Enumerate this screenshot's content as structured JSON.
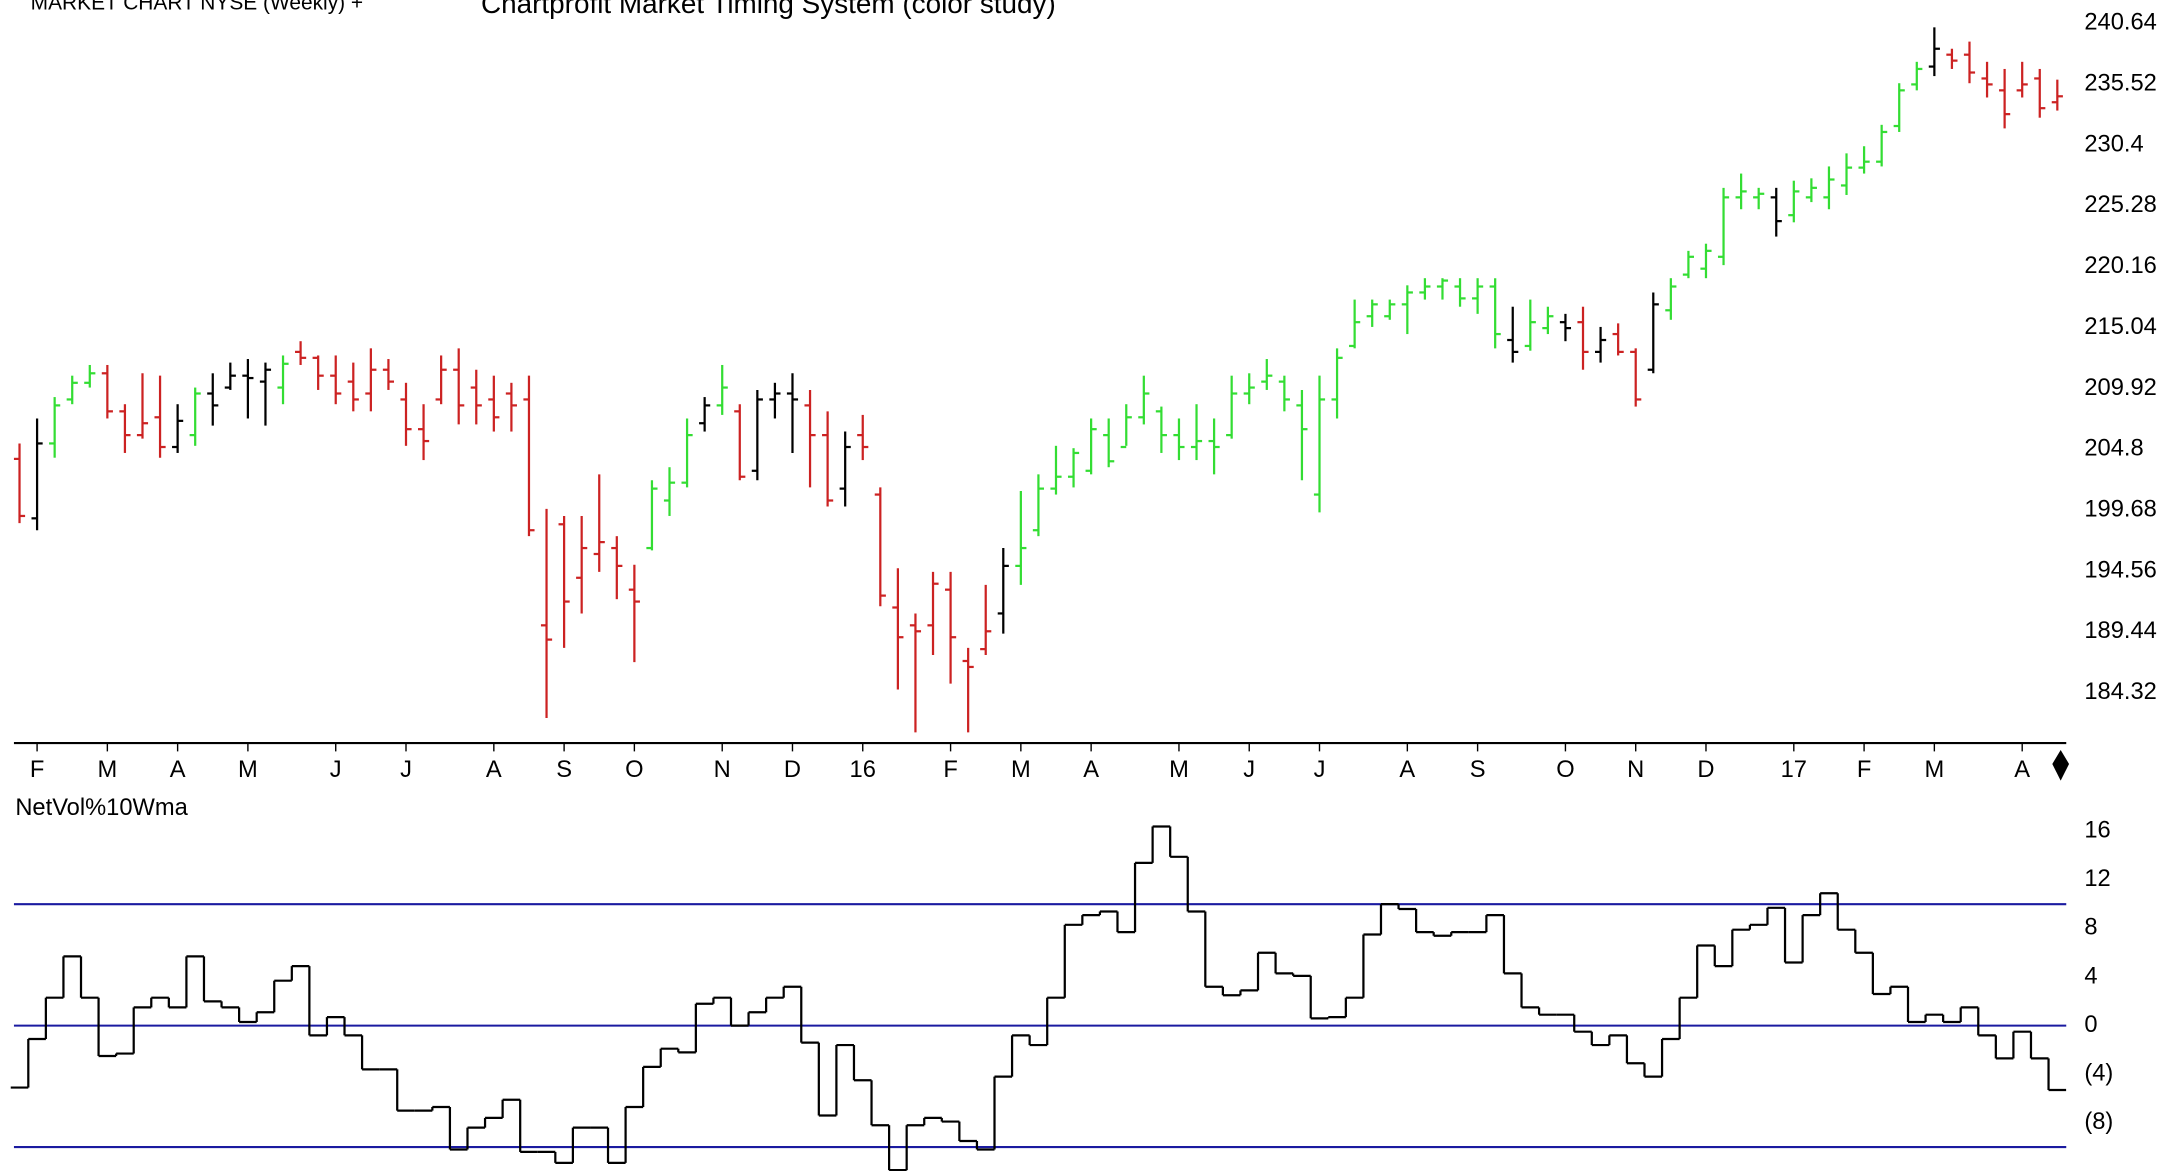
{
  "chart_data": [
    {
      "type": "ohlc",
      "title": "MARKET CHART NYSE (Weekly) +",
      "subtitle": "Chartprofit Market Timing System (color study)",
      "categories": [
        null,
        "F",
        null,
        null,
        null,
        "M",
        null,
        null,
        null,
        "A",
        null,
        null,
        null,
        "M",
        null,
        null,
        null,
        null,
        "J",
        null,
        null,
        null,
        "J",
        null,
        null,
        null,
        null,
        "A",
        null,
        null,
        null,
        "S",
        null,
        null,
        null,
        "O",
        null,
        null,
        null,
        null,
        "N",
        null,
        null,
        null,
        "D",
        null,
        null,
        null,
        "16",
        null,
        null,
        null,
        null,
        "F",
        null,
        null,
        null,
        "M",
        null,
        null,
        null,
        "A",
        null,
        null,
        null,
        null,
        "M",
        null,
        null,
        null,
        "J",
        null,
        null,
        null,
        "J",
        null,
        null,
        null,
        null,
        "A",
        null,
        null,
        null,
        "S",
        null,
        null,
        null,
        null,
        "O",
        null,
        null,
        null,
        "N",
        null,
        null,
        null,
        "D",
        null,
        null,
        null,
        null,
        "17",
        null,
        null,
        null,
        "F",
        null,
        null,
        null,
        "M",
        null,
        null,
        null,
        null,
        "A",
        null,
        null
      ],
      "open": [
        204.0,
        199.0,
        205.3,
        209.0,
        210.4,
        211.2,
        208.0,
        206.0,
        207.5,
        205.0,
        206.0,
        209.5,
        210.0,
        211.0,
        210.5,
        210.0,
        213.0,
        212.5,
        211.0,
        210.5,
        209.5,
        211.5,
        209.0,
        206.5,
        209.0,
        211.5,
        210.0,
        209.0,
        209.5,
        209.0,
        190.0,
        198.5,
        194.0,
        196.0,
        196.5,
        193.0,
        196.5,
        200.5,
        202.0,
        207.0,
        208.5,
        208.0,
        203.0,
        209.0,
        209.5,
        208.5,
        206.0,
        201.5,
        206.0,
        201.0,
        191.5,
        190.0,
        190.0,
        193.0,
        187.0,
        188.0,
        191.0,
        195.0,
        198.0,
        201.5,
        202.5,
        203.0,
        206.0,
        205.0,
        207.5,
        208.0,
        206.0,
        205.0,
        205.5,
        206.0,
        209.5,
        210.5,
        210.5,
        208.5,
        201.0,
        209.0,
        213.5,
        216.0,
        216.0,
        217.0,
        218.0,
        218.5,
        218.5,
        217.5,
        218.5,
        214.0,
        213.5,
        215.0,
        215.5,
        215.5,
        213.0,
        214.5,
        213.0,
        211.5,
        216.5,
        219.5,
        220.0,
        221.0,
        226.0,
        226.0,
        226.0,
        224.5,
        226.0,
        226.0,
        227.0,
        228.5,
        229.0,
        232.0,
        235.5,
        237.0,
        238.0,
        238.0,
        236.0,
        235.0,
        235.0,
        236.0,
        234.0
      ],
      "high": [
        205.3,
        207.4,
        209.2,
        211.0,
        211.9,
        211.9,
        208.6,
        211.2,
        211.0,
        208.6,
        210.0,
        211.2,
        212.1,
        212.4,
        212.1,
        212.7,
        213.9,
        212.7,
        212.7,
        212.1,
        213.3,
        212.4,
        210.4,
        208.6,
        212.7,
        213.3,
        211.5,
        211.0,
        210.4,
        211.0,
        199.8,
        199.2,
        199.2,
        202.7,
        197.5,
        195.1,
        202.2,
        203.3,
        207.4,
        209.2,
        211.9,
        208.6,
        209.8,
        210.4,
        211.2,
        209.8,
        208.0,
        206.3,
        207.7,
        201.6,
        194.8,
        191.0,
        194.5,
        194.5,
        188.1,
        193.4,
        196.5,
        201.3,
        202.7,
        205.1,
        204.9,
        207.4,
        207.4,
        208.6,
        211.0,
        208.4,
        207.4,
        208.6,
        207.4,
        211.0,
        211.2,
        212.4,
        211.0,
        209.8,
        211.0,
        213.3,
        217.4,
        217.4,
        217.4,
        218.6,
        219.2,
        219.2,
        219.2,
        219.2,
        219.2,
        216.8,
        217.4,
        216.8,
        216.2,
        216.8,
        215.1,
        215.4,
        213.3,
        218.0,
        219.2,
        221.5,
        222.1,
        226.8,
        228.0,
        226.8,
        226.8,
        227.4,
        227.6,
        228.6,
        229.7,
        230.3,
        232.1,
        235.6,
        237.4,
        240.3,
        238.5,
        239.1,
        237.4,
        236.8,
        237.4,
        236.8,
        235.9
      ],
      "low": [
        198.6,
        198.0,
        204.1,
        208.6,
        210.0,
        207.4,
        204.5,
        205.7,
        204.1,
        204.5,
        205.1,
        206.8,
        209.8,
        207.4,
        206.8,
        208.6,
        211.9,
        209.8,
        208.6,
        208.0,
        208.0,
        209.8,
        205.1,
        203.9,
        208.6,
        206.9,
        206.9,
        206.3,
        206.3,
        197.5,
        182.2,
        188.1,
        191.0,
        194.5,
        192.2,
        186.9,
        196.3,
        199.2,
        201.6,
        206.3,
        207.7,
        202.2,
        202.2,
        207.4,
        204.5,
        201.6,
        200.0,
        200.0,
        203.9,
        191.6,
        184.6,
        181.0,
        187.5,
        185.1,
        181.0,
        187.5,
        189.3,
        193.4,
        197.5,
        201.0,
        201.6,
        202.7,
        203.3,
        205.1,
        206.9,
        204.5,
        203.9,
        203.9,
        202.7,
        205.7,
        208.6,
        209.8,
        208.0,
        202.2,
        199.5,
        207.4,
        213.3,
        215.1,
        215.7,
        214.5,
        217.4,
        217.4,
        216.8,
        216.2,
        213.3,
        212.1,
        213.1,
        214.5,
        213.9,
        211.5,
        212.1,
        212.7,
        208.4,
        211.2,
        215.7,
        219.2,
        219.2,
        220.3,
        225.0,
        225.0,
        222.7,
        223.9,
        225.6,
        225.0,
        226.2,
        228.0,
        228.6,
        231.5,
        235.0,
        236.2,
        236.8,
        235.6,
        234.4,
        231.8,
        234.4,
        232.7,
        233.3
      ],
      "close": [
        199.2,
        205.3,
        208.5,
        210.4,
        211.2,
        208.0,
        206.0,
        207.0,
        205.0,
        207.2,
        209.5,
        208.5,
        211.0,
        210.8,
        211.5,
        212.0,
        212.5,
        211.0,
        209.5,
        209.0,
        211.5,
        210.5,
        206.5,
        205.5,
        211.5,
        208.5,
        208.5,
        207.5,
        208.5,
        198.0,
        188.8,
        192.0,
        196.5,
        197.0,
        195.0,
        192.0,
        201.5,
        202.0,
        206.0,
        208.5,
        210.0,
        202.5,
        209.0,
        209.5,
        209.0,
        206.0,
        200.5,
        205.0,
        205.0,
        192.5,
        189.0,
        189.5,
        193.5,
        189.0,
        186.5,
        189.5,
        195.0,
        196.5,
        201.5,
        202.5,
        204.5,
        206.5,
        203.8,
        207.5,
        209.5,
        206.0,
        205.0,
        205.5,
        205.0,
        209.5,
        210.0,
        211.0,
        209.0,
        206.5,
        209.0,
        212.5,
        215.5,
        217.0,
        217.0,
        218.0,
        218.5,
        219.0,
        217.5,
        218.5,
        214.5,
        213.0,
        215.5,
        216.0,
        215.0,
        213.0,
        214.0,
        213.0,
        209.0,
        217.0,
        218.5,
        221.0,
        221.5,
        226.0,
        226.5,
        226.3,
        224.0,
        226.5,
        226.8,
        227.5,
        228.5,
        229.0,
        231.5,
        235.0,
        236.8,
        238.5,
        237.5,
        236.5,
        235.5,
        233.0,
        235.5,
        233.5,
        234.5
      ],
      "bar_colors": [
        "r",
        "k",
        "g",
        "g",
        "g",
        "r",
        "r",
        "r",
        "r",
        "k",
        "g",
        "k",
        "k",
        "k",
        "k",
        "g",
        "r",
        "r",
        "r",
        "r",
        "r",
        "r",
        "r",
        "r",
        "r",
        "r",
        "r",
        "r",
        "r",
        "r",
        "r",
        "r",
        "r",
        "r",
        "r",
        "r",
        "g",
        "g",
        "g",
        "k",
        "g",
        "r",
        "k",
        "k",
        "k",
        "r",
        "r",
        "k",
        "r",
        "r",
        "r",
        "r",
        "r",
        "r",
        "r",
        "r",
        "k",
        "g",
        "g",
        "g",
        "g",
        "g",
        "g",
        "g",
        "g",
        "g",
        "g",
        "g",
        "g",
        "g",
        "g",
        "g",
        "g",
        "g",
        "g",
        "g",
        "g",
        "g",
        "g",
        "g",
        "g",
        "g",
        "g",
        "g",
        "g",
        "k",
        "g",
        "g",
        "k",
        "r",
        "k",
        "r",
        "r",
        "k",
        "g",
        "g",
        "g",
        "g",
        "g",
        "g",
        "k",
        "g",
        "g",
        "g",
        "g",
        "g",
        "g",
        "g",
        "g",
        "k",
        "r",
        "r",
        "r",
        "r",
        "r",
        "r",
        "r"
      ],
      "color_key": {
        "g": "#33dd33",
        "r": "#cc2222",
        "k": "#000000"
      },
      "ylim": [
        180.1,
        242.6
      ],
      "yticks": [
        240.64,
        235.52,
        230.4,
        225.28,
        220.16,
        215.04,
        209.92,
        204.8,
        199.68,
        194.56,
        189.44,
        184.32
      ]
    },
    {
      "type": "step",
      "title": "NetVol%10Wma",
      "color": "#000000",
      "values": [
        -5.1,
        -1.1,
        2.3,
        5.7,
        2.3,
        -2.5,
        -2.3,
        1.5,
        2.3,
        1.5,
        5.7,
        2.0,
        1.5,
        0.3,
        1.1,
        3.7,
        4.9,
        -0.8,
        0.7,
        -0.8,
        -3.6,
        -3.6,
        -7.0,
        -7.0,
        -6.7,
        -10.2,
        -8.4,
        -7.6,
        -6.1,
        -10.4,
        -10.4,
        -11.3,
        -8.4,
        -8.4,
        -11.3,
        -6.7,
        -3.4,
        -1.9,
        -2.2,
        1.8,
        2.3,
        0,
        1.1,
        2.3,
        3.2,
        -1.4,
        -7.4,
        -1.6,
        -4.5,
        -8.2,
        -11.9,
        -8.2,
        -7.6,
        -7.9,
        -9.5,
        -10.2,
        -4.2,
        -0.8,
        -1.6,
        2.3,
        8.3,
        9.1,
        9.4,
        7.7,
        13.4,
        16.4,
        13.9,
        9.4,
        3.2,
        2.5,
        2.9,
        6.0,
        4.3,
        4.1,
        0.6,
        0.7,
        2.3,
        7.5,
        10.0,
        9.6,
        7.7,
        7.4,
        7.7,
        7.7,
        9.1,
        4.3,
        1.5,
        0.9,
        0.9,
        -0.5,
        -1.6,
        -0.8,
        -3.1,
        -4.2,
        -1.1,
        2.3,
        6.6,
        4.9,
        7.9,
        8.3,
        9.7,
        5.2,
        9.1,
        10.9,
        7.9,
        6.0,
        2.6,
        3.2,
        0.3,
        0.9,
        0.3,
        1.5,
        -0.8,
        -2.7,
        -0.5,
        -2.7,
        -5.3
      ],
      "ylim": [
        -12.2,
        17.3
      ],
      "yticks": [
        16,
        12,
        8,
        4,
        0,
        {
          "value": -4,
          "label": "(4)"
        },
        {
          "value": -8,
          "label": "(8)"
        }
      ],
      "hlines": [
        10,
        0,
        -10
      ],
      "hline_color": "#1a1aa0"
    }
  ]
}
